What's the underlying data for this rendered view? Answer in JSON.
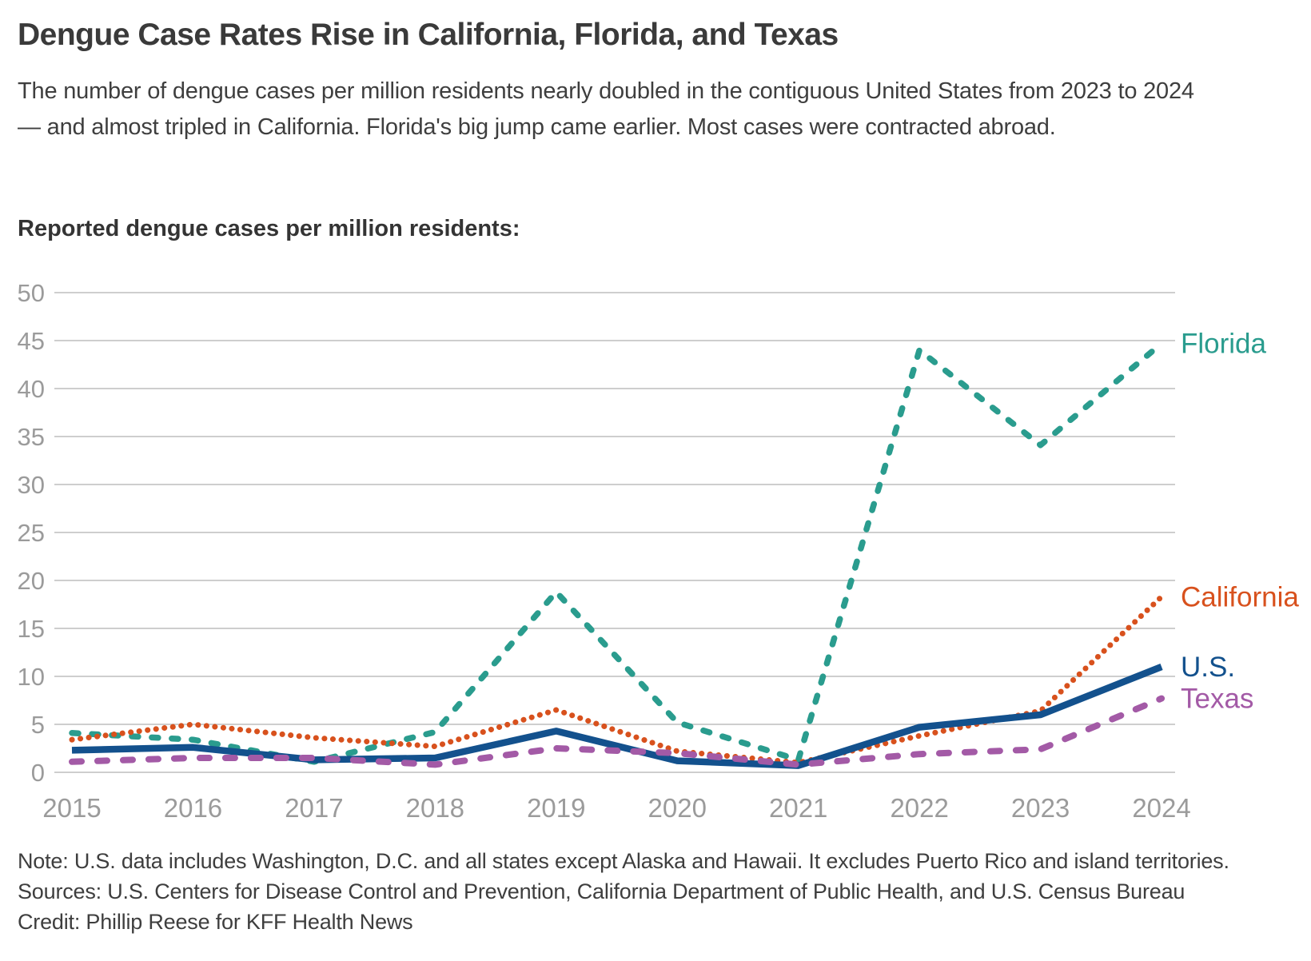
{
  "header": {
    "title": "Dengue Case Rates Rise in California, Florida, and Texas",
    "subtitle": "The number of dengue cases per million residents nearly doubled in the contiguous United States from 2023 to 2024 — and almost tripled in California. Florida's big jump came earlier. Most cases were contracted abroad."
  },
  "chart_data": {
    "type": "line",
    "title": "Reported dengue cases per million residents:",
    "x": [
      2015,
      2016,
      2017,
      2018,
      2019,
      2020,
      2021,
      2022,
      2023,
      2024
    ],
    "series": [
      {
        "name": "Florida",
        "color": "#2a9c8e",
        "style": "dashed",
        "values": [
          4.1,
          3.4,
          1.1,
          4.2,
          18.8,
          5.2,
          1.3,
          44.0,
          34.1,
          44.7
        ]
      },
      {
        "name": "California",
        "color": "#d8511d",
        "style": "dotted",
        "values": [
          3.4,
          5.0,
          3.6,
          2.7,
          6.5,
          2.2,
          1.0,
          3.8,
          6.4,
          18.3
        ]
      },
      {
        "name": "U.S.",
        "color": "#13518d",
        "style": "solid",
        "values": [
          2.3,
          2.6,
          1.3,
          1.5,
          4.3,
          1.2,
          0.7,
          4.7,
          6.0,
          11.0
        ]
      },
      {
        "name": "Texas",
        "color": "#a35aa6",
        "style": "dashed-long",
        "values": [
          1.1,
          1.5,
          1.5,
          0.8,
          2.5,
          2.0,
          0.8,
          1.9,
          2.4,
          7.7
        ]
      }
    ],
    "xlabel": "",
    "ylabel": "",
    "ylim": [
      0,
      50
    ],
    "ytick_step": 5,
    "grid": true,
    "legend_position": "right-end-of-lines",
    "gridline_color": "#cecece",
    "tick_label_color": "#9b9b9b"
  },
  "footer": {
    "note": "Note: U.S. data includes Washington, D.C. and all states except Alaska and Hawaii. It excludes Puerto Rico and island territories.",
    "sources": "Sources: U.S. Centers for Disease Control and Prevention, California Department of Public Health, and U.S. Census Bureau",
    "credit": "Credit: Phillip Reese for KFF Health News"
  }
}
